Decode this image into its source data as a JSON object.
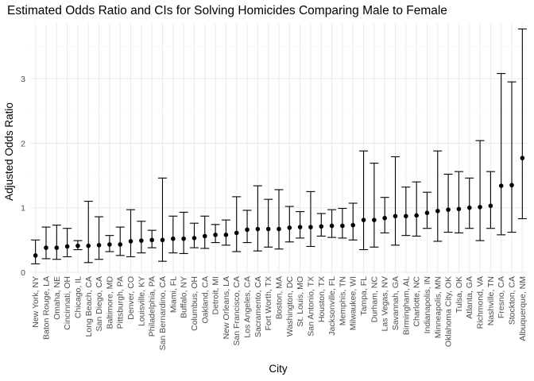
{
  "chart_data": {
    "type": "scatter",
    "title": "Estimated Odds Ratio and CIs for Solving Homicides Comparing Male to Female",
    "xlabel": "City",
    "ylabel": "Adjusted Odds Ratio",
    "ylim": [
      0,
      3.85
    ],
    "yticks": [
      0,
      1,
      2,
      3
    ],
    "grid": true,
    "error_bars": true,
    "categories": [
      "New York, NY",
      "Baton Rouge, LA",
      "Omaha, NE",
      "Cincinnati, OH",
      "Chicago, IL",
      "Long Beach, CA",
      "San Diego, CA",
      "Baltimore, MD",
      "Pittsburgh, PA",
      "Denver, CO",
      "Louisville, KY",
      "Philadelphia, PA",
      "San Bernardino, CA",
      "Miami, FL",
      "Buffalo, NY",
      "Columbus, OH",
      "Oakland, CA",
      "Detroit, MI",
      "New Orleans, LA",
      "San Francisco, CA",
      "Los Angeles, CA",
      "Sacramento, CA",
      "Fort Worth, TX",
      "Boston, MA",
      "Washington, DC",
      "St. Louis, MO",
      "San Antonio, TX",
      "Houston, TX",
      "Jacksonville, FL",
      "Memphis, TN",
      "Milwaukee, WI",
      "Tampa, FL",
      "Durham, NC",
      "Las Vegas, NV",
      "Savannah, GA",
      "Birmingham, AL",
      "Charlotte, NC",
      "Indianapolis, IN",
      "Minneapolis, MN",
      "Oklahoma City, OK",
      "Tulsa, OK",
      "Atlanta, GA",
      "Richmond, VA",
      "Nashville, TN",
      "Fresno, CA",
      "Stockton, CA",
      "Albuquerque, NM"
    ],
    "estimate": [
      0.26,
      0.38,
      0.38,
      0.4,
      0.41,
      0.41,
      0.42,
      0.43,
      0.43,
      0.48,
      0.49,
      0.5,
      0.5,
      0.52,
      0.52,
      0.53,
      0.56,
      0.58,
      0.58,
      0.61,
      0.66,
      0.67,
      0.67,
      0.67,
      0.69,
      0.7,
      0.7,
      0.71,
      0.72,
      0.72,
      0.73,
      0.81,
      0.81,
      0.84,
      0.87,
      0.87,
      0.88,
      0.92,
      0.95,
      0.97,
      0.98,
      1.0,
      1.01,
      1.03,
      1.34,
      1.35,
      1.77
    ],
    "ci_low": [
      0.13,
      0.21,
      0.2,
      0.24,
      0.35,
      0.15,
      0.2,
      0.32,
      0.26,
      0.24,
      0.3,
      0.38,
      0.17,
      0.3,
      0.29,
      0.38,
      0.37,
      0.46,
      0.42,
      0.32,
      0.46,
      0.33,
      0.39,
      0.36,
      0.47,
      0.53,
      0.4,
      0.56,
      0.54,
      0.53,
      0.5,
      0.35,
      0.39,
      0.61,
      0.42,
      0.57,
      0.56,
      0.68,
      0.48,
      0.62,
      0.61,
      0.68,
      0.49,
      0.68,
      0.58,
      0.62,
      0.83
    ],
    "ci_high": [
      0.5,
      0.7,
      0.73,
      0.68,
      0.49,
      1.1,
      0.86,
      0.57,
      0.7,
      0.97,
      0.79,
      0.65,
      1.46,
      0.87,
      0.93,
      0.76,
      0.87,
      0.74,
      0.81,
      1.17,
      0.96,
      1.34,
      1.13,
      1.28,
      1.02,
      0.94,
      1.25,
      0.91,
      0.97,
      0.99,
      1.07,
      1.88,
      1.69,
      1.16,
      1.79,
      1.32,
      1.4,
      1.24,
      1.88,
      1.52,
      1.56,
      1.46,
      2.04,
      1.56,
      3.08,
      2.95,
      3.77
    ]
  }
}
